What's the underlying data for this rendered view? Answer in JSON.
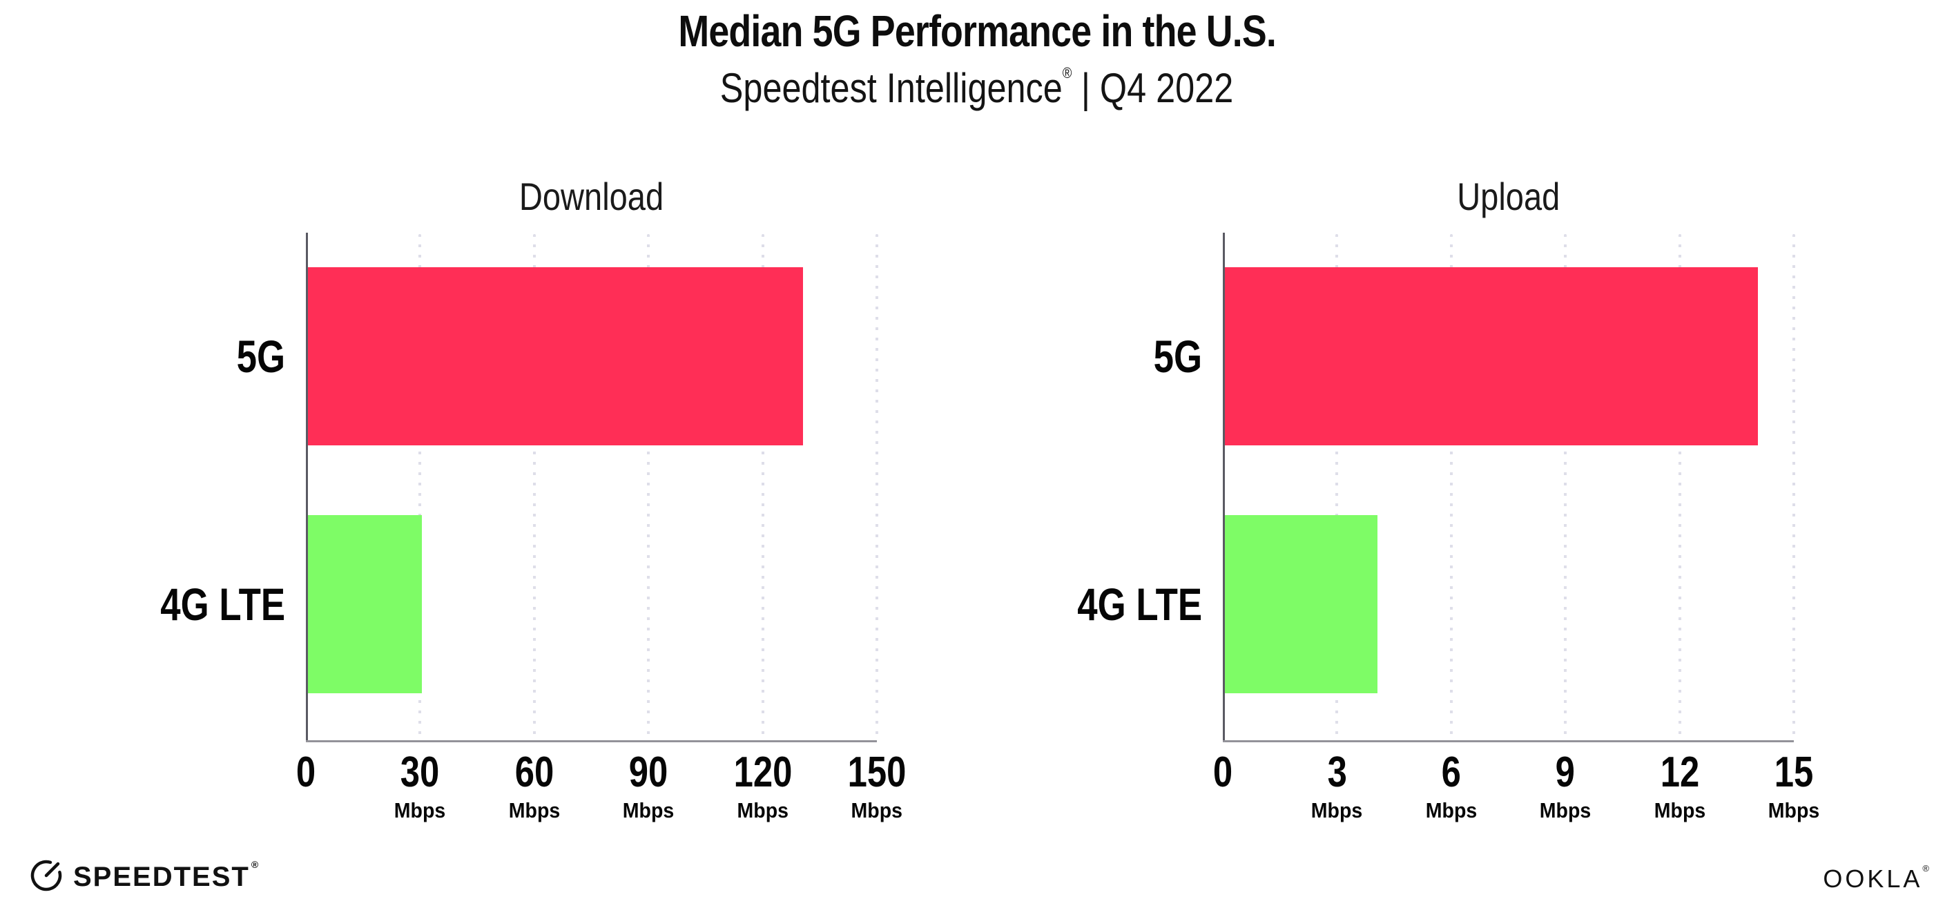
{
  "header": {
    "title": "Median 5G Performance in the U.S.",
    "subtitle_brand": "Speedtest Intelligence",
    "subtitle_mark": "®",
    "subtitle_rest": "| Q4 2022"
  },
  "chart_data": [
    {
      "type": "bar",
      "orientation": "horizontal",
      "title": "Download",
      "categories": [
        "5G",
        "4G LTE"
      ],
      "values": [
        130,
        30
      ],
      "value_unit": "Mbps",
      "xlim": [
        0,
        150
      ],
      "xticks": [
        0,
        30,
        60,
        90,
        120,
        150
      ],
      "tick_unit_label": "Mbps",
      "zero_tick_has_unit": false,
      "bar_colors": [
        "#FF2E56",
        "#7EFC66"
      ],
      "grid": "dotted-vertical",
      "legend": "none"
    },
    {
      "type": "bar",
      "orientation": "horizontal",
      "title": "Upload",
      "categories": [
        "5G",
        "4G LTE"
      ],
      "values": [
        14,
        4
      ],
      "value_unit": "Mbps",
      "xlim": [
        0,
        15
      ],
      "xticks": [
        0,
        3,
        6,
        9,
        12,
        15
      ],
      "tick_unit_label": "Mbps",
      "zero_tick_has_unit": false,
      "bar_colors": [
        "#FF2E56",
        "#7EFC66"
      ],
      "grid": "dotted-vertical",
      "legend": "none"
    }
  ],
  "footer": {
    "speedtest_label": "SPEEDTEST",
    "speedtest_mark": "®",
    "ookla_label": "OOKLA",
    "ookla_mark": "®"
  },
  "colors": {
    "bar_5g": "#FF2E56",
    "bar_4g_lte": "#7EFC66",
    "gridline": "#DEDEE9",
    "x_axis": "#939299",
    "y_axis": "#5A5A63",
    "text": "#0D0D0D",
    "background": "#FFFFFF"
  }
}
